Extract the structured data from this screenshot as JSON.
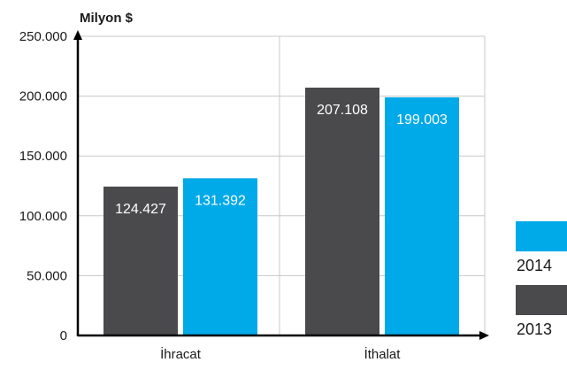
{
  "chart_data": {
    "type": "bar",
    "y_unit_label": "Milyon $",
    "categories": [
      "İhracat",
      "İthalat"
    ],
    "series": [
      {
        "name": "2013",
        "values": [
          124427,
          207108
        ],
        "labels": [
          "124.427",
          "207.108"
        ],
        "color": "#4a4a4c"
      },
      {
        "name": "2014",
        "values": [
          131392,
          199003
        ],
        "labels": [
          "131.392",
          "199.003"
        ],
        "color": "#00a9e8"
      }
    ],
    "ylim": [
      0,
      250000
    ],
    "yticks": [
      0,
      50000,
      100000,
      150000,
      200000,
      250000
    ],
    "ytick_labels": [
      "0",
      "50.000",
      "100.000",
      "150.000",
      "200.000",
      "250.000"
    ],
    "grid": true,
    "legend_position": "bottom-right",
    "legend_order": [
      "2014",
      "2013"
    ]
  }
}
